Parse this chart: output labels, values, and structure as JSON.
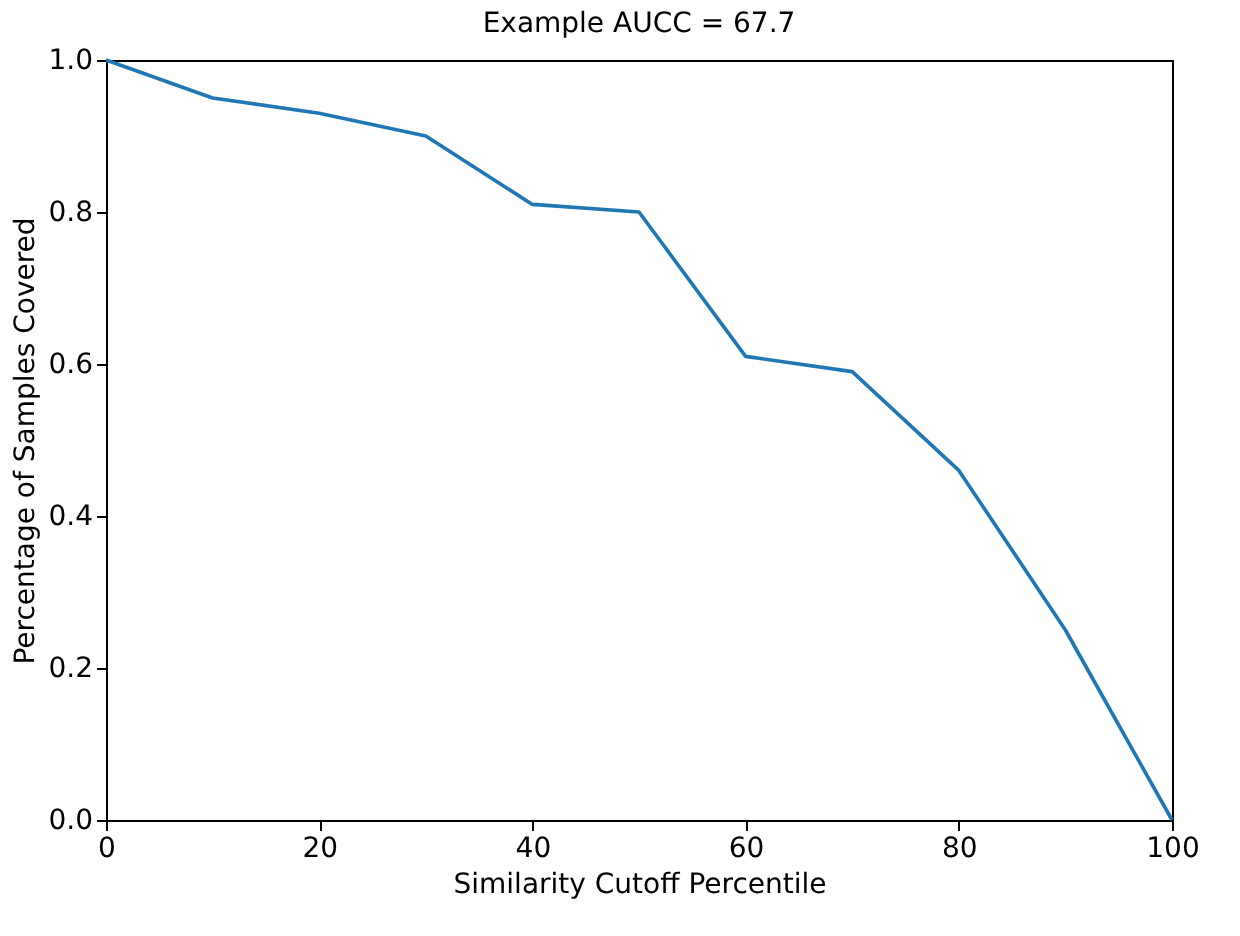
{
  "chart_data": {
    "type": "line",
    "title": "Example AUCC = 67.7",
    "xlabel": "Similarity Cutoff Percentile",
    "ylabel": "Percentage of Samples Covered",
    "x": [
      0,
      10,
      20,
      30,
      40,
      50,
      60,
      70,
      80,
      90,
      100
    ],
    "series": [
      {
        "color": "#1f77b4",
        "values": [
          1.0,
          0.95,
          0.93,
          0.9,
          0.81,
          0.8,
          0.61,
          0.59,
          0.46,
          0.25,
          0.0
        ]
      }
    ],
    "xlim": [
      0,
      100
    ],
    "xticks": [
      0,
      20,
      40,
      60,
      80,
      100
    ],
    "ylim": [
      0,
      1
    ],
    "yticks": [
      {
        "value": 0,
        "label": "0.0"
      },
      0.2,
      0.4,
      0.6,
      0.8,
      {
        "value": 1,
        "label": "1.0"
      }
    ],
    "grid": false,
    "legend": false,
    "marker": "none",
    "line_style": "solid"
  }
}
